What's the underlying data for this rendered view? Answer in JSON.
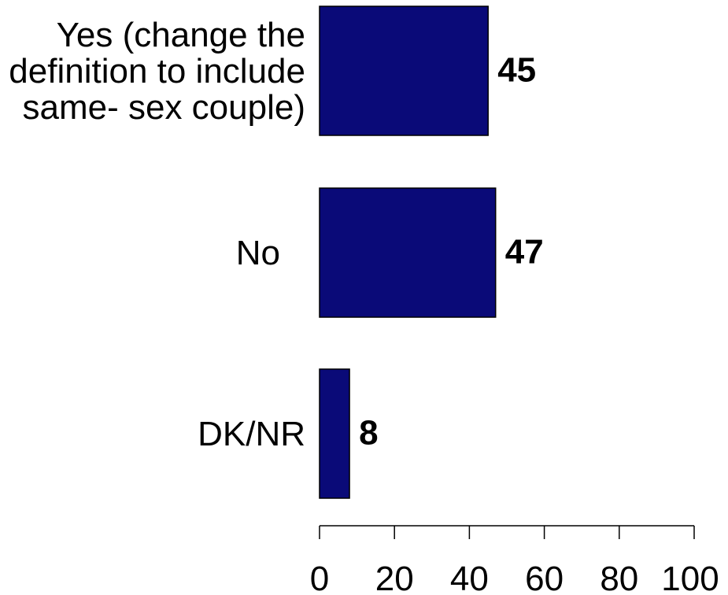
{
  "chart_data": {
    "type": "bar",
    "orientation": "horizontal",
    "categories": [
      [
        "Yes (change the",
        "definition to include",
        "same- sex couple)"
      ],
      [
        "No"
      ],
      [
        "DK/NR"
      ]
    ],
    "values": [
      45,
      47,
      8
    ],
    "data_labels": [
      "45",
      "47",
      "8"
    ],
    "xlim": [
      0,
      100
    ],
    "xticks": [
      0,
      20,
      40,
      60,
      80,
      100
    ],
    "xtick_labels": [
      "0",
      "20",
      "40",
      "60",
      "80",
      "100"
    ],
    "grid": false,
    "legend": "none",
    "bar_color": "#0a0a78",
    "bar_border_color": "#000000"
  }
}
